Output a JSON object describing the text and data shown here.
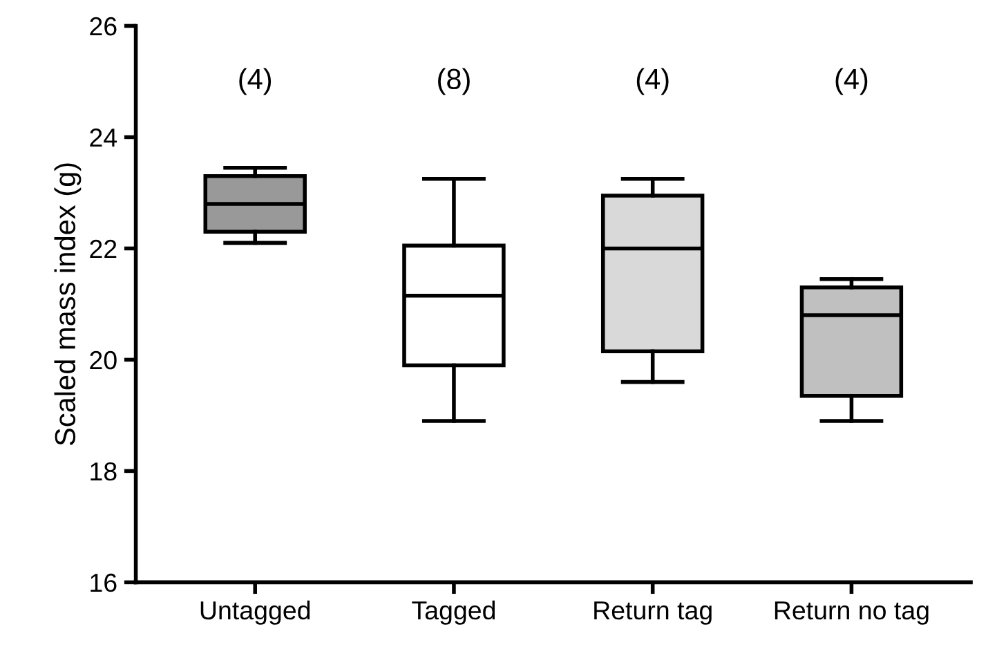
{
  "chart_data": {
    "type": "box",
    "ylabel": "Scaled mass index (g)",
    "categories": [
      "Untagged",
      "Tagged",
      "Return tag",
      "Return no tag"
    ],
    "boxes": [
      {
        "low": 22.1,
        "q1": 22.3,
        "median": 22.8,
        "q3": 23.3,
        "high": 23.45
      },
      {
        "low": 18.9,
        "q1": 19.9,
        "median": 21.15,
        "q3": 22.05,
        "high": 23.25
      },
      {
        "low": 19.6,
        "q1": 20.15,
        "median": 22.0,
        "q3": 22.95,
        "high": 23.25
      },
      {
        "low": 18.9,
        "q1": 19.35,
        "median": 20.8,
        "q3": 21.3,
        "high": 21.45
      }
    ],
    "colors": [
      "#999999",
      "#ffffff",
      "#d9d9d9",
      "#c0c0c0"
    ],
    "ylim": [
      16,
      26
    ],
    "yticks": [
      16,
      18,
      20,
      22,
      24,
      26
    ],
    "grid": false,
    "annotations": [
      "(4)",
      "(8)",
      "(4)",
      "(4)"
    ]
  }
}
